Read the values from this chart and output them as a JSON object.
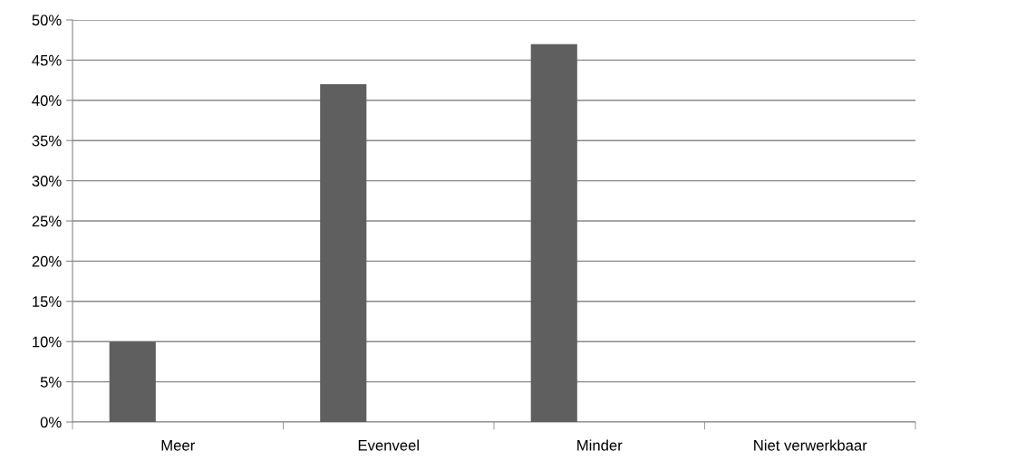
{
  "chart_data": {
    "type": "bar",
    "categories": [
      "Meer",
      "Evenveel",
      "Minder",
      "Niet verwerkbaar"
    ],
    "values": [
      10,
      42,
      47,
      0
    ],
    "color": "#5f5f5f",
    "ylim": [
      0,
      50
    ],
    "yticks": [
      {
        "value": 0,
        "label": "0%"
      },
      {
        "value": 5,
        "label": "5%"
      },
      {
        "value": 10,
        "label": "10%"
      },
      {
        "value": 15,
        "label": "15%"
      },
      {
        "value": 20,
        "label": "20%"
      },
      {
        "value": 25,
        "label": "25%"
      },
      {
        "value": 30,
        "label": "30%"
      },
      {
        "value": 35,
        "label": "35%"
      },
      {
        "value": 40,
        "label": "40%"
      },
      {
        "value": 45,
        "label": "45%"
      },
      {
        "value": 50,
        "label": "50%"
      }
    ],
    "grid": "y",
    "legend": false
  }
}
